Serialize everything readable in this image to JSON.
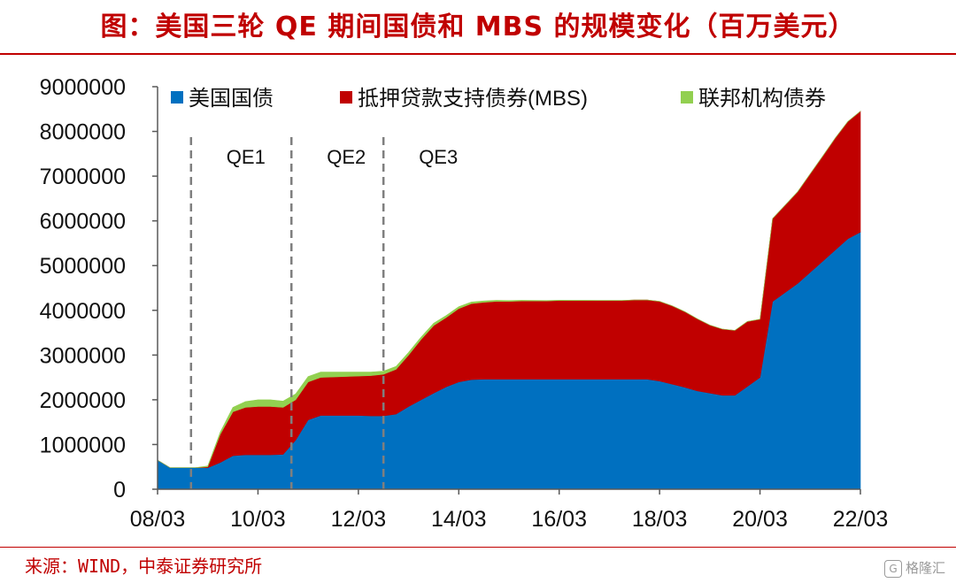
{
  "header": {
    "title": "图：美国三轮 QE 期间国债和 MBS 的规模变化（百万美元）"
  },
  "footer": {
    "source": "来源：WIND，中泰证券研究所",
    "watermark_icon": "G",
    "watermark": "格隆汇"
  },
  "colors": {
    "treasury": "#0070c0",
    "mbs": "#c00000",
    "agency": "#92d050",
    "title": "#c00000",
    "qe_line": "#7f7f7f"
  },
  "chart_data": {
    "type": "area",
    "stacked": true,
    "title": "图：美国三轮 QE 期间国债和 MBS 的规模变化（百万美元）",
    "xlabel": "",
    "ylabel": "",
    "ylim": [
      0,
      9000000
    ],
    "y_ticks": [
      "0",
      "1000000",
      "2000000",
      "3000000",
      "4000000",
      "5000000",
      "6000000",
      "7000000",
      "8000000",
      "9000000"
    ],
    "x_ticks": [
      "08/03",
      "10/03",
      "12/03",
      "14/03",
      "16/03",
      "18/03",
      "20/03",
      "22/03"
    ],
    "x_start": "2008-03",
    "x_end": "2022-03",
    "legend": {
      "placement": "top",
      "entries": [
        "美国国债",
        "抵押贷款支持债券(MBS)",
        "联邦机构债券"
      ]
    },
    "annotations": [
      {
        "label": "QE1",
        "x": "2008-11"
      },
      {
        "label": "QE2",
        "x": "2010-11"
      },
      {
        "label": "QE3",
        "x": "2012-09"
      }
    ],
    "x": [
      "2008-03",
      "2008-06",
      "2008-09",
      "2008-12",
      "2009-03",
      "2009-06",
      "2009-09",
      "2009-12",
      "2010-03",
      "2010-06",
      "2010-09",
      "2010-12",
      "2011-03",
      "2011-06",
      "2011-09",
      "2011-12",
      "2012-03",
      "2012-06",
      "2012-09",
      "2012-12",
      "2013-03",
      "2013-06",
      "2013-09",
      "2013-12",
      "2014-03",
      "2014-06",
      "2014-09",
      "2014-12",
      "2015-03",
      "2015-06",
      "2015-09",
      "2015-12",
      "2016-03",
      "2016-06",
      "2016-09",
      "2016-12",
      "2017-03",
      "2017-06",
      "2017-09",
      "2017-12",
      "2018-03",
      "2018-06",
      "2018-09",
      "2018-12",
      "2019-03",
      "2019-06",
      "2019-09",
      "2019-12",
      "2020-03",
      "2020-06",
      "2020-09",
      "2020-12",
      "2021-03",
      "2021-06",
      "2021-09",
      "2021-12",
      "2022-03"
    ],
    "series": [
      {
        "name": "美国国债",
        "values": [
          650000,
          480000,
          480000,
          480000,
          480000,
          600000,
          750000,
          770000,
          770000,
          770000,
          780000,
          1100000,
          1550000,
          1650000,
          1650000,
          1650000,
          1650000,
          1640000,
          1640000,
          1680000,
          1850000,
          2000000,
          2150000,
          2290000,
          2400000,
          2450000,
          2460000,
          2460000,
          2460000,
          2460000,
          2460000,
          2460000,
          2460000,
          2460000,
          2460000,
          2460000,
          2460000,
          2460000,
          2460000,
          2460000,
          2420000,
          2350000,
          2280000,
          2200000,
          2150000,
          2100000,
          2100000,
          2300000,
          2500000,
          4200000,
          4400000,
          4600000,
          4850000,
          5100000,
          5350000,
          5600000,
          5750000
        ]
      },
      {
        "name": "抵押贷款支持债券(MBS)",
        "values": [
          0,
          0,
          0,
          0,
          20000,
          630000,
          980000,
          1060000,
          1080000,
          1080000,
          1050000,
          900000,
          850000,
          850000,
          860000,
          870000,
          880000,
          900000,
          930000,
          1000000,
          1150000,
          1350000,
          1510000,
          1550000,
          1640000,
          1700000,
          1720000,
          1740000,
          1740000,
          1750000,
          1750000,
          1750000,
          1760000,
          1760000,
          1760000,
          1760000,
          1760000,
          1760000,
          1770000,
          1770000,
          1780000,
          1750000,
          1690000,
          1610000,
          1520000,
          1480000,
          1450000,
          1450000,
          1300000,
          1850000,
          1950000,
          2050000,
          2200000,
          2350000,
          2500000,
          2620000,
          2700000
        ]
      },
      {
        "name": "联邦机构债券",
        "values": [
          0,
          0,
          0,
          0,
          20000,
          50000,
          100000,
          130000,
          150000,
          150000,
          140000,
          130000,
          120000,
          120000,
          110000,
          100000,
          90000,
          80000,
          70000,
          65000,
          60000,
          55000,
          50000,
          45000,
          40000,
          35000,
          30000,
          25000,
          20000,
          15000,
          12000,
          10000,
          8000,
          6000,
          5000,
          4000,
          3000,
          2500,
          2000,
          2000,
          2000,
          2000,
          2000,
          2000,
          2000,
          2000,
          2000,
          2000,
          2000,
          2000,
          2000,
          2000,
          2000,
          2000,
          2000,
          2000,
          2000
        ]
      }
    ]
  }
}
